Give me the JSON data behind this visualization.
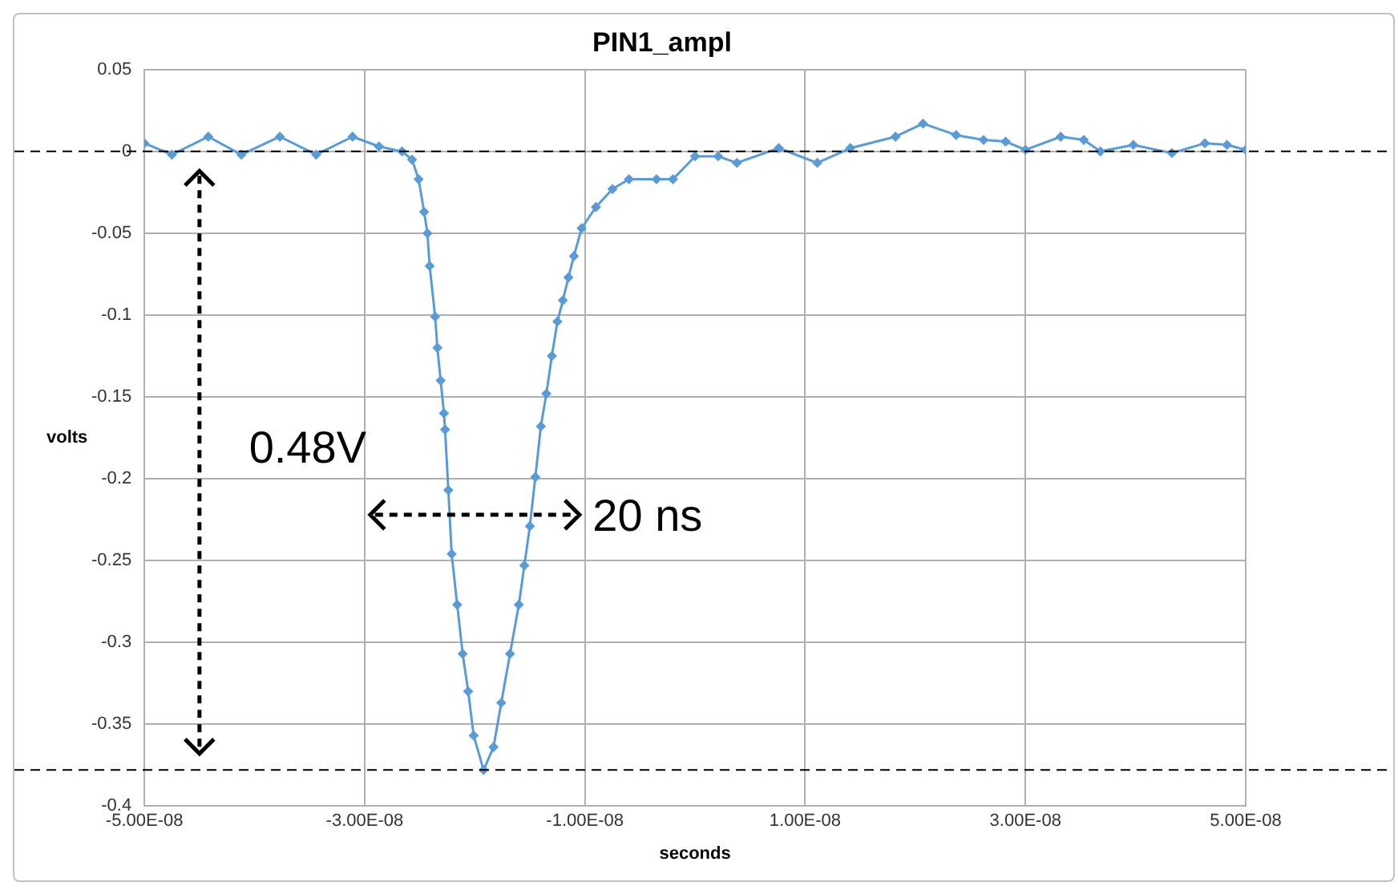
{
  "chart_data": {
    "type": "line",
    "title": "PIN1_ampl",
    "xlabel": "seconds",
    "ylabel": "volts",
    "x": [
      -5e-08,
      -4.75e-08,
      -4.42e-08,
      -4.12e-08,
      -3.77e-08,
      -3.44e-08,
      -3.11e-08,
      -2.87e-08,
      -2.66e-08,
      -2.57e-08,
      -2.51e-08,
      -2.46e-08,
      -2.43e-08,
      -2.41e-08,
      -2.36e-08,
      -2.34e-08,
      -2.31e-08,
      -2.28e-08,
      -2.27e-08,
      -2.24e-08,
      -2.21e-08,
      -2.16e-08,
      -2.11e-08,
      -2.06e-08,
      -2.01e-08,
      -1.92e-08,
      -1.83e-08,
      -1.76e-08,
      -1.68e-08,
      -1.6e-08,
      -1.55e-08,
      -1.5e-08,
      -1.45e-08,
      -1.4e-08,
      -1.35e-08,
      -1.3e-08,
      -1.25e-08,
      -1.2e-08,
      -1.15e-08,
      -1.1e-08,
      -1.03e-08,
      -9e-09,
      -7.5e-09,
      -6e-09,
      -3.5e-09,
      -2e-09,
      0.0,
      2.1e-09,
      3.8e-09,
      7.6e-09,
      1.11e-08,
      1.41e-08,
      1.82e-08,
      2.07e-08,
      2.37e-08,
      2.62e-08,
      2.82e-08,
      3e-08,
      3.32e-08,
      3.53e-08,
      3.68e-08,
      3.98e-08,
      4.33e-08,
      4.63e-08,
      4.83e-08,
      5e-08
    ],
    "series": [
      {
        "color": "#5b9bd5",
        "values": [
          0.005,
          -0.002,
          0.009,
          -0.002,
          0.009,
          -0.002,
          0.009,
          0.003,
          0.0,
          -0.005,
          -0.017,
          -0.037,
          -0.05,
          -0.07,
          -0.101,
          -0.12,
          -0.14,
          -0.16,
          -0.17,
          -0.207,
          -0.246,
          -0.277,
          -0.307,
          -0.33,
          -0.357,
          -0.378,
          -0.364,
          -0.337,
          -0.307,
          -0.277,
          -0.253,
          -0.229,
          -0.199,
          -0.168,
          -0.148,
          -0.125,
          -0.104,
          -0.091,
          -0.077,
          -0.064,
          -0.047,
          -0.034,
          -0.023,
          -0.017,
          -0.017,
          -0.017,
          -0.003,
          -0.003,
          -0.007,
          0.002,
          -0.007,
          0.002,
          0.009,
          0.017,
          0.01,
          0.007,
          0.006,
          0.001,
          0.009,
          0.007,
          0.0,
          0.004,
          -0.001,
          0.005,
          0.004,
          0.001
        ]
      }
    ],
    "xlim": [
      -5e-08,
      5e-08
    ],
    "xticks": [
      {
        "value": -5e-08,
        "label": "-5.00E-08"
      },
      {
        "value": -3e-08,
        "label": "-3.00E-08"
      },
      {
        "value": -1e-08,
        "label": "-1.00E-08"
      },
      {
        "value": 1e-08,
        "label": "1.00E-08"
      },
      {
        "value": 3e-08,
        "label": "3.00E-08"
      },
      {
        "value": 5e-08,
        "label": "5.00E-08"
      }
    ],
    "ylim": [
      -0.4,
      0.05
    ],
    "yticks": [
      0.05,
      0,
      -0.05,
      -0.1,
      -0.15,
      -0.2,
      -0.25,
      -0.3,
      -0.35,
      -0.4
    ],
    "ref_lines": [
      {
        "axis": "y",
        "value": 0,
        "color": "#000000",
        "line_style": "dashed"
      },
      {
        "axis": "y",
        "value": -0.378,
        "color": "#000000",
        "line_style": "dashed"
      }
    ],
    "annotations": [
      "0.48V",
      "20 ns"
    ],
    "grid": true,
    "legend": false,
    "marker": "diamond",
    "line_style": "solid"
  }
}
